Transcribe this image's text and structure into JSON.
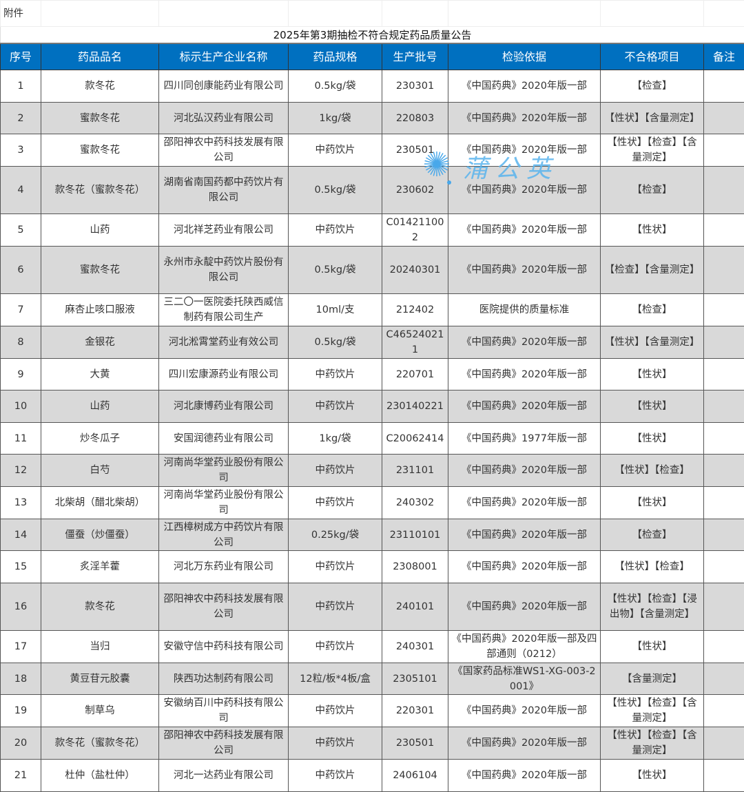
{
  "attachment_label": "附件",
  "title": "2025年第3期抽检不符合规定药品质量公告",
  "headers": [
    "序号",
    "药品品名",
    "标示生产企业名称",
    "药品规格",
    "生产批号",
    "检验依据",
    "不合格项目",
    "备注"
  ],
  "rows": [
    [
      "1",
      "款冬花",
      "四川同创康能药业有限公司",
      "0.5kg/袋",
      "230301",
      "《中国药典》2020年版一部",
      "【检查】",
      ""
    ],
    [
      "2",
      "蜜款冬花",
      "河北弘汉药业有限公司",
      "1kg/袋",
      "220803",
      "《中国药典》2020年版一部",
      "【性状】【含量测定】",
      ""
    ],
    [
      "3",
      "蜜款冬花",
      "邵阳神农中药科技发展有限公司",
      "中药饮片",
      "230501",
      "《中国药典》2020年版一部",
      "【性状】【检查】【含量测定】",
      ""
    ],
    [
      "4",
      "款冬花（蜜款冬花）",
      "湖南省南国药都中药饮片有限公司",
      "0.5kg/袋",
      "230602",
      "《中国药典》2020年版一部",
      "【检查】",
      ""
    ],
    [
      "5",
      "山药",
      "河北祥芝药业有限公司",
      "中药饮片",
      "C014211002",
      "《中国药典》2020年版一部",
      "【性状】",
      ""
    ],
    [
      "6",
      "蜜款冬花",
      "永州市永靛中药饮片股份有限公司",
      "0.5kg/袋",
      "20240301",
      "《中国药典》2020年版一部",
      "【检查】【含量测定】",
      ""
    ],
    [
      "7",
      "麻杏止咳口服液",
      "三二〇一医院委托陕西威信制药有限公司生产",
      "10ml/支",
      "212402",
      "医院提供的质量标准",
      "【检查】",
      ""
    ],
    [
      "8",
      "金银花",
      "河北淞霄堂药业有效公司",
      "0.5kg/袋",
      "C465240211",
      "《中国药典》2020年版一部",
      "【性状】【含量测定】",
      ""
    ],
    [
      "9",
      "大黄",
      "四川宏康源药业有限公司",
      "中药饮片",
      "220701",
      "《中国药典》2020年版一部",
      "【性状】",
      ""
    ],
    [
      "10",
      "山药",
      "河北康博药业有限公司",
      "中药饮片",
      "230140221",
      "《中国药典》2020年版一部",
      "【性状】",
      ""
    ],
    [
      "11",
      "炒冬瓜子",
      "安国润德药业有限公司",
      "1kg/袋",
      "C20062414",
      "《中国药典》1977年版一部",
      "【性状】",
      ""
    ],
    [
      "12",
      "白芍",
      "河南尚华堂药业股份有限公司",
      "中药饮片",
      "231101",
      "《中国药典》2020年版一部",
      "【性状】【检查】",
      ""
    ],
    [
      "13",
      "北柴胡（醋北柴胡）",
      "河南尚华堂药业股份有限公司",
      "中药饮片",
      "240302",
      "《中国药典》2020年版一部",
      "【性状】",
      ""
    ],
    [
      "14",
      "僵蚕（炒僵蚕）",
      "江西樟树成方中药饮片有限公司",
      "0.25kg/袋",
      "23110101",
      "《中国药典》2020年版一部",
      "【检查】",
      ""
    ],
    [
      "15",
      "炙淫羊藿",
      "河北万东药业有限公司",
      "中药饮片",
      "2308001",
      "《中国药典》2020年版一部",
      "【性状】【检查】",
      ""
    ],
    [
      "16",
      "款冬花",
      "邵阳神农中药科技发展有限公司",
      "中药饮片",
      "240101",
      "《中国药典》2020年版一部",
      "【性状】【检查】【浸出物】【含量测定】",
      ""
    ],
    [
      "17",
      "当归",
      "安徽守信中药科技有限公司",
      "中药饮片",
      "240301",
      "《中国药典》2020年版一部及四部通则（0212）",
      "【性状】",
      ""
    ],
    [
      "18",
      "黄豆苷元胶囊",
      "陕西功达制药有限公司",
      "12粒/板*4板/盒",
      "2305101",
      "《国家药品标准WS1-XG-003-2001》",
      "【含量测定】",
      ""
    ],
    [
      "19",
      "制草乌",
      "安徽纳百川中药科技有限公司",
      "中药饮片",
      "220301",
      "《中国药典》2020年版一部",
      "【性状】【检查】【含量测定】",
      ""
    ],
    [
      "20",
      "款冬花（蜜款冬花）",
      "邵阳神农中药科技发展有限公司",
      "中药饮片",
      "230501",
      "《中国药典》2020年版一部",
      "【性状】【检查】【含量测定】",
      ""
    ],
    [
      "21",
      "杜仲（盐杜仲）",
      "河北一达药业有限公司",
      "中药饮片",
      "2406104",
      "《中国药典》2020年版一部",
      "【性状】",
      ""
    ]
  ],
  "watermark": "蒲公英",
  "colors": {
    "header_bg": "#0070c0",
    "header_text": "#ffffff",
    "shade_row": "#d9d9d9"
  }
}
